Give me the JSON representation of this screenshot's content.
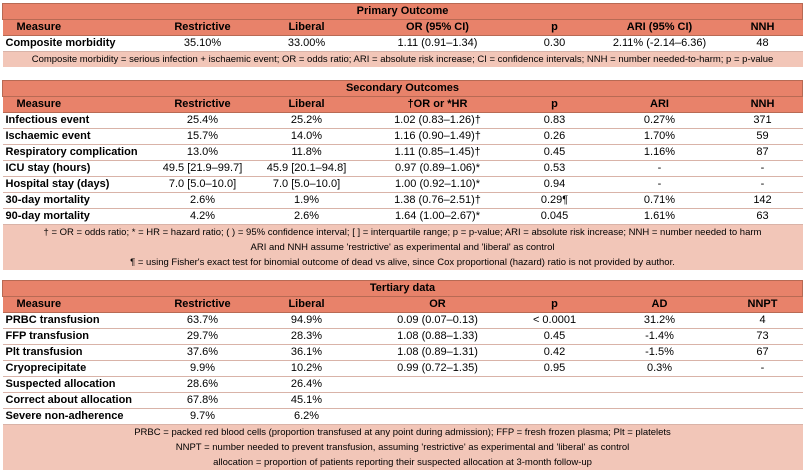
{
  "primary": {
    "title": "Primary Outcome",
    "headers": [
      "Measure",
      "Restrictive",
      "Liberal",
      "OR (95% CI)",
      "p",
      "ARI (95% CI)",
      "NNH"
    ],
    "rows": [
      [
        "Composite morbidity",
        "35.10%",
        "33.00%",
        "1.11 (0.91–1.34)",
        "0.30",
        "2.11% (-2.14–6.36)",
        "48"
      ]
    ],
    "notes": [
      "Composite morbidity = serious infection + ischaemic event; OR = odds ratio; ARI = absolute risk increase; CI = confidence intervals; NNH = number needed-to-harm; p = p-value"
    ]
  },
  "secondary": {
    "title": "Secondary Outcomes",
    "headers": [
      "Measure",
      "Restrictive",
      "Liberal",
      "†OR or *HR",
      "p",
      "ARI",
      "NNH"
    ],
    "rows": [
      [
        "Infectious event",
        "25.4%",
        "25.2%",
        "1.02 (0.83–1.26)†",
        "0.83",
        "0.27%",
        "371"
      ],
      [
        "Ischaemic event",
        "15.7%",
        "14.0%",
        "1.16 (0.90–1.49)†",
        "0.26",
        "1.70%",
        "59"
      ],
      [
        "Respiratory complication",
        "13.0%",
        "11.8%",
        "1.11 (0.85–1.45)†",
        "0.45",
        "1.16%",
        "87"
      ],
      [
        "ICU stay (hours)",
        "49.5 [21.9–99.7]",
        "45.9 [20.1–94.8]",
        "0.97 (0.89–1.06)*",
        "0.53",
        "-",
        "-"
      ],
      [
        "Hospital stay (days)",
        "7.0 [5.0–10.0]",
        "7.0 [5.0–10.0]",
        "1.00 (0.92–1.10)*",
        "0.94",
        "-",
        "-"
      ],
      [
        "30-day mortality",
        "2.6%",
        "1.9%",
        "1.38 (0.76–2.51)†",
        "0.29¶",
        "0.71%",
        "142"
      ],
      [
        "90-day mortality",
        "4.2%",
        "2.6%",
        "1.64 (1.00–2.67)*",
        "0.045",
        "1.61%",
        "63"
      ]
    ],
    "notes": [
      "† = OR = odds ratio; * = HR = hazard ratio; ( ) = 95% confidence interval; [ ] = interquartile range; p = p-value; ARI = absolute risk increase; NNH = number needed to harm",
      "ARI and NNH assume 'restrictive' as experimental and 'liberal' as control",
      "¶ = using Fisher's exact test for binomial outcome of dead vs alive, since Cox proportional (hazard) ratio is not provided by author."
    ]
  },
  "tertiary": {
    "title": "Tertiary data",
    "headers": [
      "Measure",
      "Restrictive",
      "Liberal",
      "OR",
      "p",
      "AD",
      "NNPT"
    ],
    "rows": [
      [
        "PRBC transfusion",
        "63.7%",
        "94.9%",
        "0.09 (0.07–0.13)",
        "< 0.0001",
        "31.2%",
        "4"
      ],
      [
        "FFP transfusion",
        "29.7%",
        "28.3%",
        "1.08 (0.88–1.33)",
        "0.45",
        "-1.4%",
        "73"
      ],
      [
        "Plt transfusion",
        "37.6%",
        "36.1%",
        "1.08 (0.89–1.31)",
        "0.42",
        "-1.5%",
        "67"
      ],
      [
        "Cryoprecipitate",
        "9.9%",
        "10.2%",
        "0.99 (0.72–1.35)",
        "0.95",
        "0.3%",
        "-"
      ],
      [
        "Suspected allocation",
        "28.6%",
        "26.4%",
        "",
        "",
        "",
        ""
      ],
      [
        "Correct about allocation",
        "67.8%",
        "45.1%",
        "",
        "",
        "",
        ""
      ],
      [
        "Severe non-adherence",
        "9.7%",
        "6.2%",
        "",
        "",
        "",
        ""
      ]
    ],
    "notes": [
      "PRBC = packed red blood cells (proportion transfused at any point during admission); FFP = fresh frozen plasma; Plt = platelets",
      "NNPT = number needed to prevent transfusion, assuming 'restrictive' as experimental and 'liberal' as control",
      "allocation = proportion of patients reporting their suspected allocation at 3-month follow-up"
    ]
  }
}
